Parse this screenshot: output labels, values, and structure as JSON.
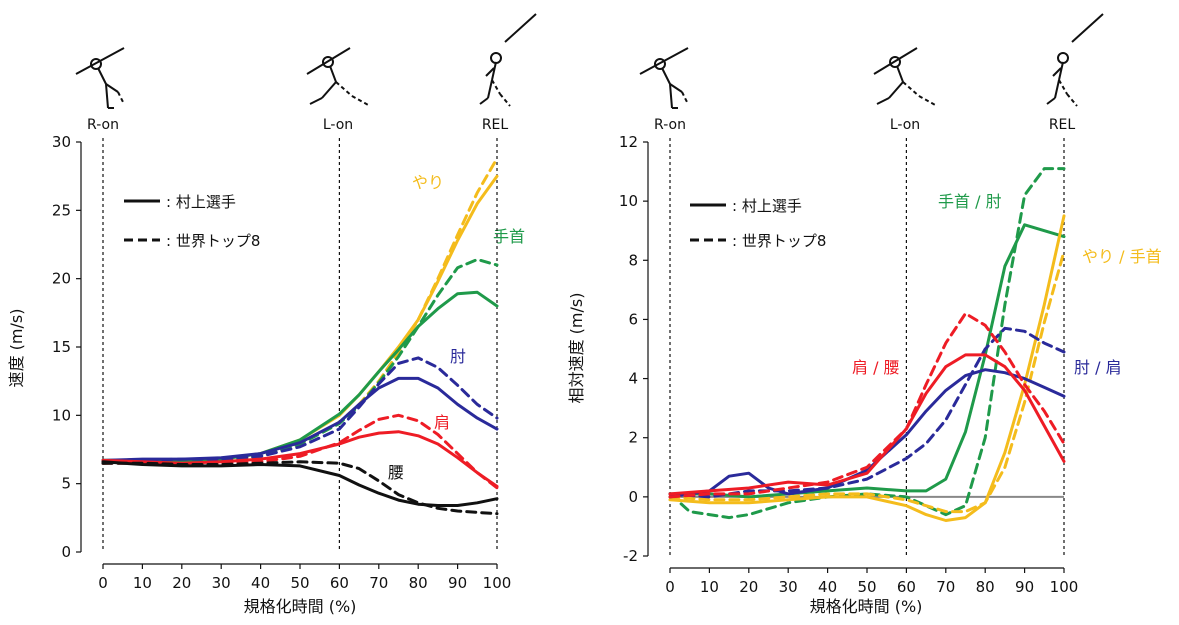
{
  "chart_data": [
    {
      "type": "line",
      "ylabel": "速度 (m/s)",
      "xlabel": "規格化時間 (%)",
      "xlim": [
        0,
        100
      ],
      "ylim": [
        0,
        30
      ],
      "xticks": [
        0,
        10,
        20,
        30,
        40,
        50,
        60,
        70,
        80,
        90,
        100
      ],
      "yticks": [
        0,
        5,
        10,
        15,
        20,
        25,
        30
      ],
      "phases": [
        {
          "label": "R-on",
          "x": 0
        },
        {
          "label": "L-on",
          "x": 60
        },
        {
          "label": "REL",
          "x": 100
        }
      ],
      "legend": [
        {
          "style": "solid",
          "label": ": 村上選手"
        },
        {
          "style": "dashed",
          "label": ": 世界トップ8"
        }
      ],
      "series": [
        {
          "name": "やり",
          "color": "#F4BC1C",
          "style": "solid",
          "x": [
            0,
            10,
            20,
            30,
            40,
            50,
            60,
            65,
            70,
            75,
            80,
            85,
            90,
            95,
            100
          ],
          "y": [
            6.7,
            6.7,
            6.6,
            6.8,
            7.2,
            8.2,
            10.0,
            11.5,
            13.2,
            15.0,
            17.0,
            19.8,
            22.8,
            25.5,
            27.5
          ]
        },
        {
          "name": "やり",
          "color": "#F4BC1C",
          "style": "dashed",
          "x": [
            0,
            10,
            20,
            30,
            40,
            50,
            60,
            65,
            70,
            75,
            80,
            85,
            90,
            95,
            100
          ],
          "y": [
            6.5,
            6.6,
            6.5,
            6.7,
            7.0,
            7.9,
            9.5,
            10.8,
            12.5,
            14.6,
            17.0,
            20.0,
            23.2,
            26.3,
            28.8
          ]
        },
        {
          "name": "手首",
          "color": "#1F9A4A",
          "style": "solid",
          "x": [
            0,
            10,
            20,
            30,
            40,
            50,
            60,
            65,
            70,
            75,
            80,
            85,
            90,
            95,
            100
          ],
          "y": [
            6.7,
            6.7,
            6.6,
            6.8,
            7.2,
            8.2,
            10.1,
            11.5,
            13.2,
            14.8,
            16.5,
            17.8,
            18.9,
            19.0,
            18.0
          ]
        },
        {
          "name": "手首",
          "color": "#1F9A4A",
          "style": "dashed",
          "x": [
            0,
            10,
            20,
            30,
            40,
            50,
            60,
            65,
            70,
            75,
            80,
            85,
            90,
            95,
            100
          ],
          "y": [
            6.5,
            6.6,
            6.5,
            6.7,
            7.0,
            7.9,
            9.4,
            10.7,
            12.4,
            14.3,
            16.5,
            18.8,
            20.8,
            21.4,
            21.0
          ]
        },
        {
          "name": "肘",
          "color": "#2A2A9A",
          "style": "solid",
          "x": [
            0,
            10,
            20,
            30,
            40,
            50,
            60,
            65,
            70,
            75,
            80,
            85,
            90,
            95,
            100
          ],
          "y": [
            6.7,
            6.8,
            6.8,
            6.9,
            7.2,
            8.0,
            9.5,
            10.8,
            12.0,
            12.7,
            12.7,
            12.0,
            10.8,
            9.8,
            9.0
          ]
        },
        {
          "name": "肘",
          "color": "#2A2A9A",
          "style": "dashed",
          "x": [
            0,
            10,
            20,
            30,
            40,
            50,
            60,
            65,
            70,
            75,
            80,
            85,
            90,
            95,
            100
          ],
          "y": [
            6.5,
            6.7,
            6.8,
            6.8,
            7.0,
            7.7,
            9.0,
            10.6,
            12.3,
            13.8,
            14.2,
            13.5,
            12.2,
            10.8,
            9.8
          ]
        },
        {
          "name": "肩",
          "color": "#EE1C25",
          "style": "solid",
          "x": [
            0,
            10,
            20,
            30,
            40,
            50,
            60,
            65,
            70,
            75,
            80,
            85,
            90,
            95,
            100
          ],
          "y": [
            6.7,
            6.6,
            6.5,
            6.6,
            6.8,
            7.2,
            7.9,
            8.4,
            8.7,
            8.8,
            8.5,
            7.9,
            6.9,
            5.8,
            4.8
          ]
        },
        {
          "name": "肩",
          "color": "#EE1C25",
          "style": "dashed",
          "x": [
            0,
            10,
            20,
            30,
            40,
            50,
            60,
            65,
            70,
            75,
            80,
            85,
            90,
            95,
            100
          ],
          "y": [
            6.5,
            6.5,
            6.4,
            6.5,
            6.6,
            7.0,
            8.0,
            8.9,
            9.7,
            10.0,
            9.6,
            8.6,
            7.2,
            5.8,
            4.7
          ]
        },
        {
          "name": "腰",
          "color": "#111111",
          "style": "solid",
          "x": [
            0,
            10,
            20,
            30,
            40,
            50,
            60,
            65,
            70,
            75,
            80,
            85,
            90,
            95,
            100
          ],
          "y": [
            6.6,
            6.4,
            6.3,
            6.3,
            6.4,
            6.3,
            5.6,
            4.9,
            4.3,
            3.8,
            3.5,
            3.4,
            3.4,
            3.6,
            3.9
          ]
        },
        {
          "name": "腰",
          "color": "#111111",
          "style": "dashed",
          "x": [
            0,
            10,
            20,
            30,
            40,
            50,
            60,
            65,
            70,
            75,
            80,
            85,
            90,
            95,
            100
          ],
          "y": [
            6.5,
            6.5,
            6.4,
            6.4,
            6.5,
            6.6,
            6.5,
            6.1,
            5.2,
            4.2,
            3.6,
            3.2,
            3.0,
            2.9,
            2.8
          ]
        }
      ]
    },
    {
      "type": "line",
      "ylabel": "相対速度 (m/s)",
      "xlabel": "規格化時間 (%)",
      "xlim": [
        0,
        100
      ],
      "ylim": [
        -2,
        12
      ],
      "xticks": [
        0,
        10,
        20,
        30,
        40,
        50,
        60,
        70,
        80,
        90,
        100
      ],
      "yticks": [
        -2,
        0,
        2,
        4,
        6,
        8,
        10,
        12
      ],
      "zero_line": true,
      "phases": [
        {
          "label": "R-on",
          "x": 0
        },
        {
          "label": "L-on",
          "x": 60
        },
        {
          "label": "REL",
          "x": 100
        }
      ],
      "legend": [
        {
          "style": "solid",
          "label": ": 村上選手"
        },
        {
          "style": "dashed",
          "label": ": 世界トップ8"
        }
      ],
      "series": [
        {
          "name": "手首 / 肘",
          "color": "#1F9A4A",
          "style": "solid",
          "x": [
            0,
            10,
            20,
            30,
            40,
            50,
            60,
            65,
            70,
            75,
            80,
            85,
            90,
            95,
            100
          ],
          "y": [
            0.1,
            0.1,
            0.0,
            0.1,
            0.2,
            0.3,
            0.2,
            0.2,
            0.6,
            2.2,
            4.8,
            7.8,
            9.2,
            9.0,
            8.8
          ]
        },
        {
          "name": "手首 / 肘",
          "color": "#1F9A4A",
          "style": "dashed",
          "x": [
            0,
            5,
            10,
            15,
            20,
            30,
            40,
            50,
            60,
            65,
            70,
            75,
            80,
            85,
            90,
            95,
            100
          ],
          "y": [
            0.1,
            -0.5,
            -0.6,
            -0.7,
            -0.6,
            -0.2,
            0.0,
            0.1,
            0.0,
            -0.3,
            -0.6,
            -0.3,
            2.0,
            6.5,
            10.2,
            11.1,
            11.1
          ]
        },
        {
          "name": "やり / 手首",
          "color": "#F4BC1C",
          "style": "solid",
          "x": [
            0,
            10,
            20,
            30,
            40,
            50,
            60,
            65,
            70,
            75,
            80,
            85,
            90,
            95,
            100
          ],
          "y": [
            -0.1,
            -0.2,
            -0.2,
            -0.1,
            0.0,
            0.0,
            -0.3,
            -0.6,
            -0.8,
            -0.7,
            -0.2,
            1.5,
            3.8,
            6.5,
            9.5
          ]
        },
        {
          "name": "やり / 手首",
          "color": "#F4BC1C",
          "style": "dashed",
          "x": [
            0,
            10,
            20,
            30,
            40,
            50,
            60,
            65,
            70,
            75,
            80,
            85,
            90,
            95,
            100
          ],
          "y": [
            0.0,
            -0.1,
            -0.1,
            0.0,
            0.1,
            0.1,
            -0.1,
            -0.3,
            -0.5,
            -0.5,
            -0.2,
            1.0,
            3.2,
            5.9,
            8.3
          ]
        },
        {
          "name": "肘 / 肩",
          "color": "#2A2A9A",
          "style": "solid",
          "x": [
            0,
            10,
            15,
            20,
            25,
            30,
            40,
            50,
            60,
            65,
            70,
            75,
            80,
            85,
            90,
            95,
            100
          ],
          "y": [
            0.0,
            0.2,
            0.7,
            0.8,
            0.3,
            0.1,
            0.3,
            0.9,
            2.1,
            2.9,
            3.6,
            4.1,
            4.3,
            4.2,
            4.0,
            3.7,
            3.4
          ]
        },
        {
          "name": "肘 / 肩",
          "color": "#2A2A9A",
          "style": "dashed",
          "x": [
            0,
            10,
            20,
            30,
            40,
            50,
            60,
            65,
            70,
            75,
            80,
            85,
            90,
            95,
            100
          ],
          "y": [
            0.1,
            0.0,
            0.2,
            0.2,
            0.3,
            0.6,
            1.3,
            1.8,
            2.6,
            3.8,
            5.0,
            5.7,
            5.6,
            5.2,
            4.9
          ]
        },
        {
          "name": "肩 / 腰",
          "color": "#EE1C25",
          "style": "solid",
          "x": [
            0,
            10,
            20,
            30,
            40,
            50,
            60,
            65,
            70,
            75,
            80,
            85,
            90,
            95,
            100
          ],
          "y": [
            0.1,
            0.2,
            0.3,
            0.5,
            0.4,
            0.8,
            2.3,
            3.5,
            4.4,
            4.8,
            4.8,
            4.4,
            3.6,
            2.4,
            1.2
          ]
        },
        {
          "name": "肩 / 腰",
          "color": "#EE1C25",
          "style": "dashed",
          "x": [
            0,
            10,
            20,
            30,
            40,
            50,
            60,
            65,
            70,
            75,
            80,
            85,
            90,
            95,
            100
          ],
          "y": [
            0.0,
            0.1,
            0.1,
            0.3,
            0.5,
            1.0,
            2.3,
            3.8,
            5.2,
            6.2,
            5.8,
            4.9,
            3.8,
            2.9,
            1.8
          ]
        }
      ]
    }
  ]
}
